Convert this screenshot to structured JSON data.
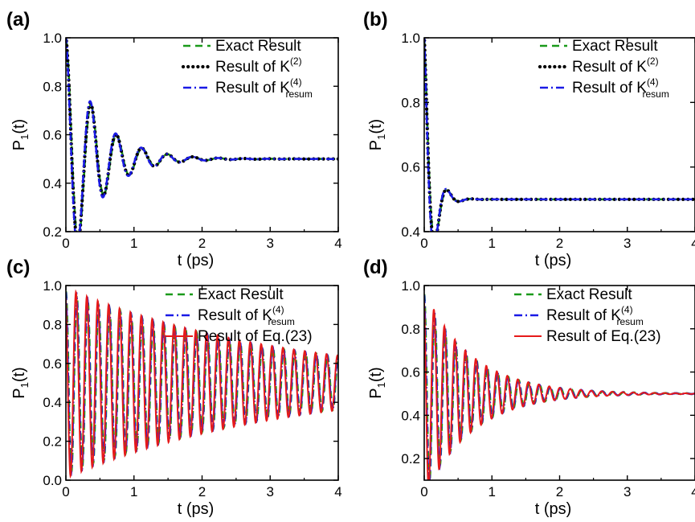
{
  "chart_data": [
    {
      "panel": "(a)",
      "type": "line",
      "xlabel": "t (ps)",
      "ylabel_main": "P",
      "ylabel_sub": "1",
      "ylabel_tail": "(t)",
      "xlim": [
        0,
        4
      ],
      "ylim": [
        0.2,
        1.0
      ],
      "xticks": [
        "0",
        "1",
        "2",
        "3",
        "4"
      ],
      "yticks": [
        "0.2",
        "0.4",
        "0.6",
        "0.8",
        "1.0"
      ],
      "legend_position": "top-right",
      "model": {
        "y0": 0.5,
        "amp": 0.5,
        "period": 0.375,
        "decay": 0.46
      },
      "series": [
        {
          "name_main": "Exact Result",
          "name_sup": "",
          "name_sub": "",
          "style": "dash",
          "color": "#1a9a1a"
        },
        {
          "name_main": "Result of K",
          "name_sup": "(2)",
          "name_sub": "",
          "style": "dot",
          "color": "#000000"
        },
        {
          "name_main": "Result of K",
          "name_sup": "(4)",
          "name_sub": "resum",
          "style": "dashdot",
          "color": "#1a1ae6"
        }
      ]
    },
    {
      "panel": "(b)",
      "type": "line",
      "xlabel": "t (ps)",
      "ylabel_main": "P",
      "ylabel_sub": "1",
      "ylabel_tail": "(t)",
      "xlim": [
        0,
        4
      ],
      "ylim": [
        0.4,
        1.0
      ],
      "xticks": [
        "0",
        "1",
        "2",
        "3",
        "4"
      ],
      "yticks": [
        "0.4",
        "0.6",
        "0.8",
        "1.0"
      ],
      "legend_position": "top-right",
      "model": {
        "y0": 0.5,
        "amp": 0.5,
        "period": 0.36,
        "decay": 0.12
      },
      "series": [
        {
          "name_main": "Exact Result",
          "name_sup": "",
          "name_sub": "",
          "style": "dash",
          "color": "#1a9a1a"
        },
        {
          "name_main": "Result of K",
          "name_sup": "(2)",
          "name_sub": "",
          "style": "dot",
          "color": "#000000"
        },
        {
          "name_main": "Result of K",
          "name_sup": "(4)",
          "name_sub": "resum",
          "style": "dashdot",
          "color": "#1a1ae6"
        }
      ]
    },
    {
      "panel": "(c)",
      "type": "line",
      "xlabel": "t (ps)",
      "ylabel_main": "P",
      "ylabel_sub": "1",
      "ylabel_tail": "(t)",
      "xlim": [
        0,
        4
      ],
      "ylim": [
        0.0,
        1.0
      ],
      "xticks": [
        "0",
        "1",
        "2",
        "3",
        "4"
      ],
      "yticks": [
        "0.0",
        "0.2",
        "0.4",
        "0.6",
        "0.8",
        "1.0"
      ],
      "legend_position": "top-right",
      "model": {
        "y0": 0.5,
        "amp": 0.47,
        "period": 0.16,
        "decay": 3.2
      },
      "series": [
        {
          "name_main": "Exact Result",
          "name_sup": "",
          "name_sub": "",
          "style": "dash",
          "color": "#1a9a1a"
        },
        {
          "name_main": "Result of K",
          "name_sup": "(4)",
          "name_sub": "resum",
          "style": "dashdot",
          "color": "#1a1ae6"
        },
        {
          "name_main": "Result of Eq.(23)",
          "name_sup": "",
          "name_sub": "",
          "style": "solid",
          "color": "#e61a1a"
        }
      ]
    },
    {
      "panel": "(d)",
      "type": "line",
      "xlabel": "t (ps)",
      "ylabel_main": "P",
      "ylabel_sub": "1",
      "ylabel_tail": "(t)",
      "xlim": [
        0,
        4
      ],
      "ylim": [
        0.1,
        1.0
      ],
      "xticks": [
        "0",
        "1",
        "2",
        "3",
        "4"
      ],
      "yticks": [
        "0.2",
        "0.4",
        "0.6",
        "0.8",
        "1.0"
      ],
      "legend_position": "top-right",
      "model": {
        "y0": 0.5,
        "amp": 0.46,
        "period": 0.155,
        "decay": 0.7
      },
      "series": [
        {
          "name_main": "Exact Result",
          "name_sup": "",
          "name_sub": "",
          "style": "dash",
          "color": "#1a9a1a"
        },
        {
          "name_main": "Result of K",
          "name_sup": "(4)",
          "name_sub": "resum",
          "style": "dashdot",
          "color": "#1a1ae6"
        },
        {
          "name_main": "Result of Eq.(23)",
          "name_sup": "",
          "name_sub": "",
          "style": "solid",
          "color": "#e61a1a"
        }
      ]
    }
  ]
}
